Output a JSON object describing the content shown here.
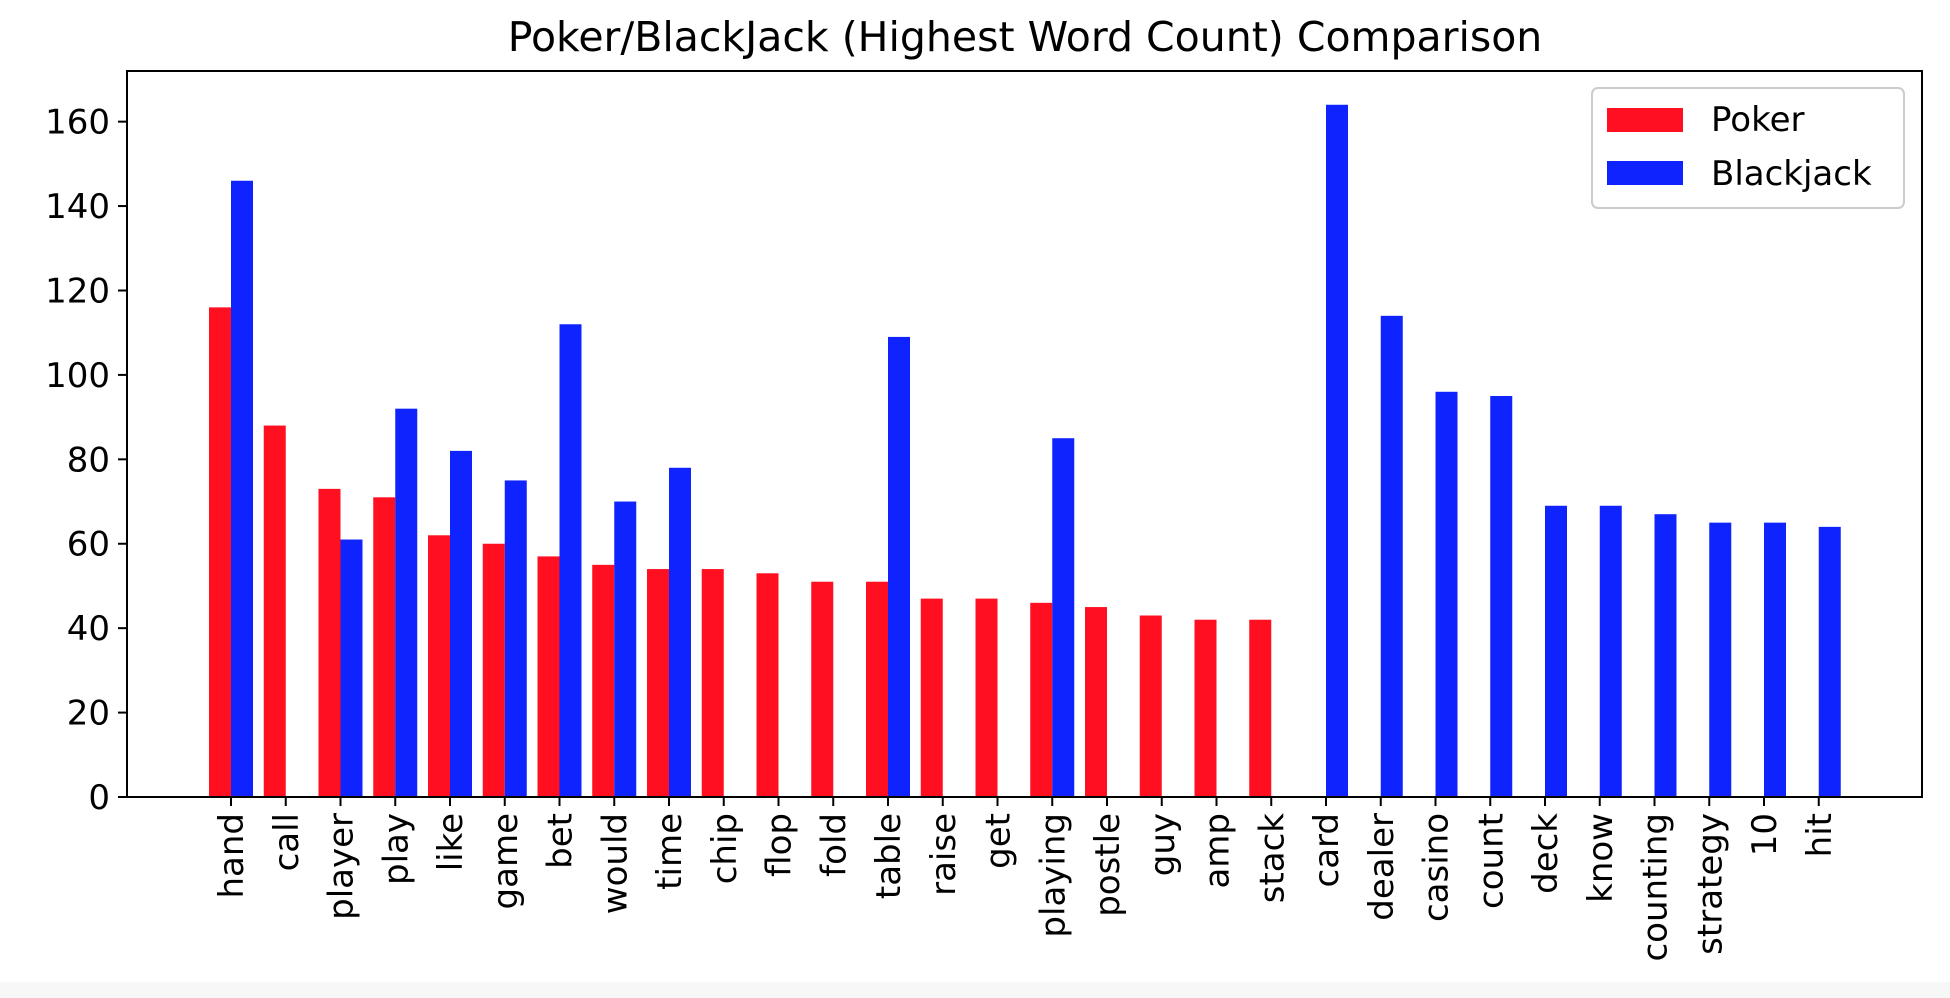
{
  "chart_data": {
    "type": "bar",
    "title": "Poker/BlackJack (Highest Word Count) Comparison",
    "xlabel": "",
    "ylabel": "",
    "ylim": [
      0,
      172
    ],
    "yticks": [
      0,
      20,
      40,
      60,
      80,
      100,
      120,
      140,
      160
    ],
    "grid": false,
    "legend_position": "top-right",
    "categories": [
      "hand",
      "call",
      "player",
      "play",
      "like",
      "game",
      "bet",
      "would",
      "time",
      "chip",
      "flop",
      "fold",
      "table",
      "raise",
      "get",
      "playing",
      "postle",
      "guy",
      "amp",
      "stack",
      "card",
      "dealer",
      "casino",
      "count",
      "deck",
      "know",
      "counting",
      "strategy",
      "10",
      "hit"
    ],
    "series": [
      {
        "name": "Poker",
        "color": "#ff0f1f",
        "values": [
          116,
          88,
          73,
          71,
          62,
          60,
          57,
          55,
          54,
          54,
          53,
          51,
          51,
          47,
          47,
          46,
          45,
          43,
          42,
          42,
          null,
          null,
          null,
          null,
          null,
          null,
          null,
          null,
          null,
          null
        ]
      },
      {
        "name": "Blackjack",
        "color": "#0f23ff",
        "values": [
          146,
          null,
          61,
          92,
          82,
          75,
          112,
          70,
          78,
          null,
          null,
          null,
          109,
          null,
          null,
          85,
          null,
          null,
          null,
          null,
          164,
          114,
          96,
          95,
          69,
          69,
          67,
          65,
          65,
          64
        ]
      }
    ]
  }
}
